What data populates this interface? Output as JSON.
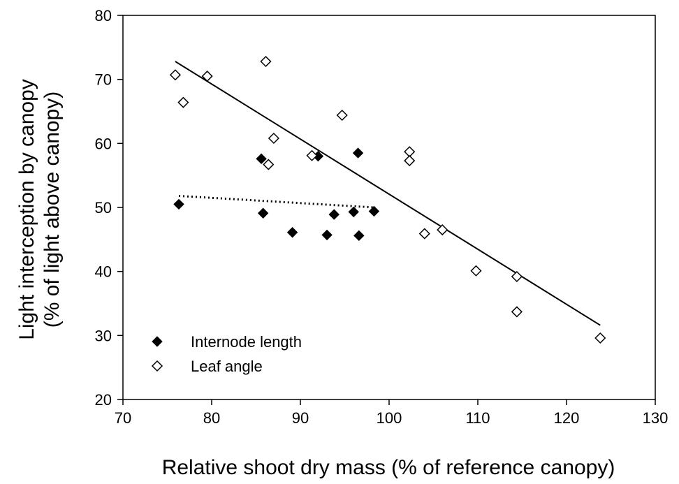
{
  "chart_data": {
    "type": "scatter",
    "title": "",
    "xlabel": "Relative shoot dry mass (% of reference canopy)",
    "ylabel_line1": "Light interception by canopy",
    "ylabel_line2": "(% of light above canopy)",
    "xlim": [
      70,
      130
    ],
    "ylim": [
      20,
      80
    ],
    "xticks": [
      70,
      80,
      90,
      100,
      110,
      120,
      130
    ],
    "yticks": [
      20,
      30,
      40,
      50,
      60,
      70,
      80
    ],
    "grid": false,
    "legend_position": "bottom-left",
    "series": [
      {
        "name": "Internode length",
        "marker": "diamond-filled",
        "color": "#000000",
        "points": [
          [
            76.3,
            50.5
          ],
          [
            85.6,
            57.6
          ],
          [
            85.8,
            49.1
          ],
          [
            89.1,
            46.1
          ],
          [
            92.0,
            58.0
          ],
          [
            93.0,
            45.7
          ],
          [
            93.8,
            48.9
          ],
          [
            96.0,
            49.3
          ],
          [
            96.5,
            58.5
          ],
          [
            96.6,
            45.6
          ],
          [
            98.3,
            49.4
          ]
        ],
        "trendline": {
          "style": "dotted",
          "x": [
            76.3,
            98.3
          ],
          "y": [
            51.8,
            50.0
          ]
        }
      },
      {
        "name": "Leaf angle",
        "marker": "diamond-open",
        "color": "#000000",
        "points": [
          [
            75.9,
            70.7
          ],
          [
            76.8,
            66.4
          ],
          [
            79.5,
            70.5
          ],
          [
            86.1,
            72.8
          ],
          [
            86.4,
            56.7
          ],
          [
            87.0,
            60.8
          ],
          [
            91.3,
            58.1
          ],
          [
            94.7,
            64.4
          ],
          [
            102.3,
            58.7
          ],
          [
            102.3,
            57.3
          ],
          [
            104.0,
            45.9
          ],
          [
            106.0,
            46.5
          ],
          [
            109.8,
            40.1
          ],
          [
            114.4,
            39.2
          ],
          [
            114.4,
            33.7
          ],
          [
            123.8,
            29.6
          ]
        ],
        "trendline": {
          "style": "solid",
          "x": [
            75.9,
            123.8
          ],
          "y": [
            72.8,
            31.6
          ]
        }
      }
    ]
  }
}
